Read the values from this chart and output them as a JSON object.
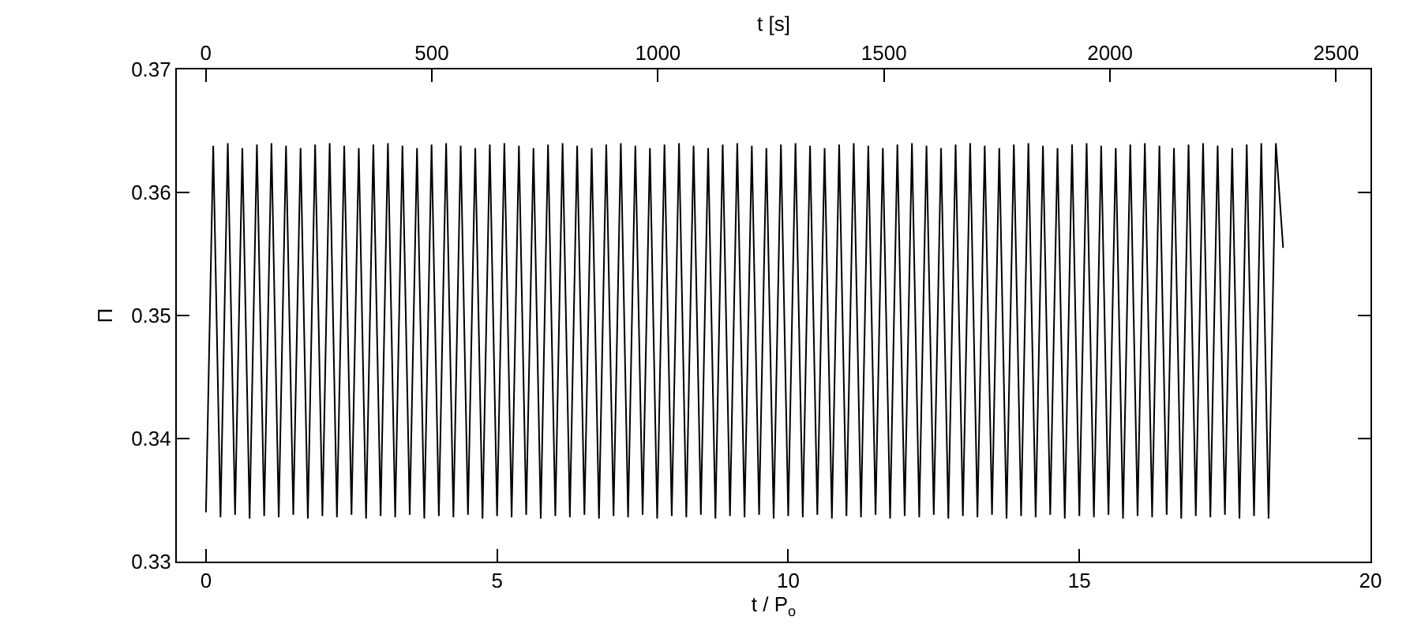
{
  "chart_data": {
    "type": "line",
    "xlabel": "t / P$_{o}$",
    "ylabel": "Π",
    "x2label": "t [s]",
    "xlim": [
      -0.5,
      20
    ],
    "xticks": [
      0,
      5,
      10,
      15,
      20
    ],
    "x2lim": [
      -64,
      2576
    ],
    "x2ticks": [
      0,
      500,
      1000,
      1500,
      2000,
      2500
    ],
    "ylim": [
      0.33,
      0.37
    ],
    "yticks": [
      0.33,
      0.34,
      0.35,
      0.36,
      0.37
    ],
    "marker": "none",
    "line_style": "solid",
    "series": [
      {
        "color": "#000000",
        "x": [
          0,
          0.125,
          0.25,
          0.375,
          0.5,
          0.625,
          0.75,
          0.875,
          1,
          1.125,
          1.25,
          1.375,
          1.5,
          1.625,
          1.75,
          1.875,
          2,
          2.125,
          2.25,
          2.375,
          2.5,
          2.625,
          2.75,
          2.875,
          3,
          3.125,
          3.25,
          3.375,
          3.5,
          3.625,
          3.75,
          3.875,
          4,
          4.125,
          4.25,
          4.375,
          4.5,
          4.625,
          4.75,
          4.875,
          5,
          5.125,
          5.25,
          5.375,
          5.5,
          5.625,
          5.75,
          5.875,
          6,
          6.125,
          6.25,
          6.375,
          6.5,
          6.625,
          6.75,
          6.875,
          7,
          7.125,
          7.25,
          7.375,
          7.5,
          7.625,
          7.75,
          7.875,
          8,
          8.125,
          8.25,
          8.375,
          8.5,
          8.625,
          8.75,
          8.875,
          9,
          9.125,
          9.25,
          9.375,
          9.5,
          9.625,
          9.75,
          9.875,
          10,
          10.125,
          10.25,
          10.375,
          10.5,
          10.625,
          10.75,
          10.875,
          11,
          11.125,
          11.25,
          11.375,
          11.5,
          11.625,
          11.75,
          11.875,
          12,
          12.125,
          12.25,
          12.375,
          12.5,
          12.625,
          12.75,
          12.875,
          13,
          13.125,
          13.25,
          13.375,
          13.5,
          13.625,
          13.75,
          13.875,
          14,
          14.125,
          14.25,
          14.375,
          14.5,
          14.625,
          14.75,
          14.875,
          15,
          15.125,
          15.25,
          15.375,
          15.5,
          15.625,
          15.75,
          15.875,
          16,
          16.125,
          16.25,
          16.375,
          16.5,
          16.625,
          16.75,
          16.875,
          17,
          17.125,
          17.25,
          17.375,
          17.5,
          17.625,
          17.75,
          17.875,
          18,
          18.125,
          18.25,
          18.375,
          18.5
        ],
        "values": [
          0.334,
          0.3638,
          0.3336,
          0.364,
          0.3338,
          0.3636,
          0.3335,
          0.3639,
          0.3337,
          0.364,
          0.3336,
          0.3638,
          0.3338,
          0.3636,
          0.3335,
          0.3639,
          0.3337,
          0.364,
          0.3336,
          0.3638,
          0.3338,
          0.3636,
          0.3335,
          0.3639,
          0.3337,
          0.364,
          0.3336,
          0.3638,
          0.3338,
          0.3636,
          0.3335,
          0.3639,
          0.3337,
          0.364,
          0.3336,
          0.3638,
          0.3338,
          0.3636,
          0.3335,
          0.3639,
          0.3337,
          0.364,
          0.3336,
          0.3638,
          0.3338,
          0.3636,
          0.3335,
          0.3639,
          0.3337,
          0.364,
          0.3336,
          0.3638,
          0.3338,
          0.3636,
          0.3335,
          0.3639,
          0.3337,
          0.364,
          0.3336,
          0.3638,
          0.3338,
          0.3636,
          0.3335,
          0.3639,
          0.3337,
          0.364,
          0.3336,
          0.3638,
          0.3338,
          0.3636,
          0.3335,
          0.3639,
          0.3337,
          0.364,
          0.3336,
          0.3638,
          0.3338,
          0.3636,
          0.3335,
          0.3639,
          0.3337,
          0.364,
          0.3336,
          0.3638,
          0.3338,
          0.3636,
          0.3335,
          0.3639,
          0.3337,
          0.364,
          0.3336,
          0.3638,
          0.3338,
          0.3636,
          0.3335,
          0.3639,
          0.3337,
          0.364,
          0.3336,
          0.3638,
          0.3338,
          0.3636,
          0.3335,
          0.3639,
          0.3337,
          0.364,
          0.3336,
          0.3638,
          0.3338,
          0.3636,
          0.3335,
          0.3639,
          0.3337,
          0.364,
          0.3336,
          0.3638,
          0.3338,
          0.3636,
          0.3335,
          0.3639,
          0.3337,
          0.364,
          0.3336,
          0.3638,
          0.3338,
          0.3636,
          0.3335,
          0.3639,
          0.3337,
          0.364,
          0.3336,
          0.3638,
          0.3338,
          0.3636,
          0.3335,
          0.3639,
          0.3337,
          0.364,
          0.3336,
          0.3638,
          0.3338,
          0.3636,
          0.3335,
          0.3639,
          0.3337,
          0.364,
          0.3335,
          0.364,
          0.3555
        ]
      }
    ]
  }
}
